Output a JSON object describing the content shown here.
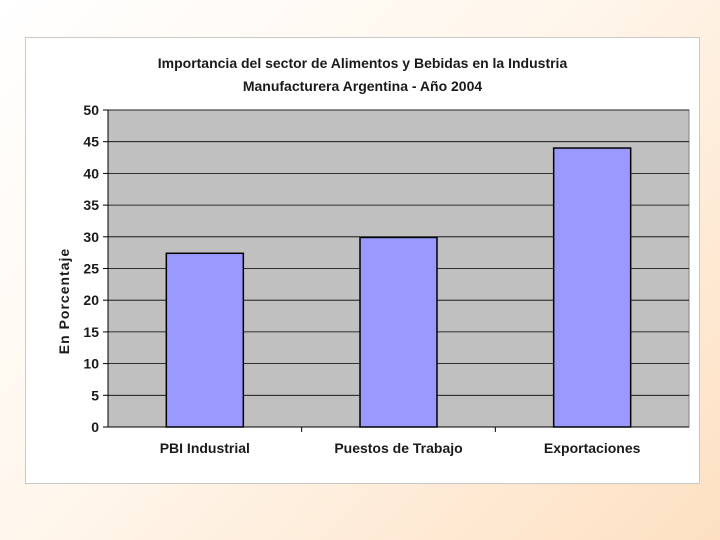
{
  "chart_data": {
    "type": "bar",
    "title_lines": [
      "Importancia del sector de Alimentos y Bebidas en la Industria",
      "Manufacturera Argentina - Año 2004"
    ],
    "ylabel": "En Porcentaje",
    "xlabel": "",
    "categories": [
      "PBI Industrial",
      "Puestos de Trabajo",
      "Exportaciones"
    ],
    "values": [
      27.4,
      29.9,
      44
    ],
    "ylim": [
      0,
      50
    ],
    "yticks": [
      0,
      5,
      10,
      15,
      20,
      25,
      30,
      35,
      40,
      45,
      50
    ],
    "grid": true,
    "legend": "none",
    "colors": {
      "bar_fill": "#9999ff",
      "bar_stroke": "#000000",
      "plot_background": "#c0c0c0",
      "gridline": "#000000"
    }
  }
}
